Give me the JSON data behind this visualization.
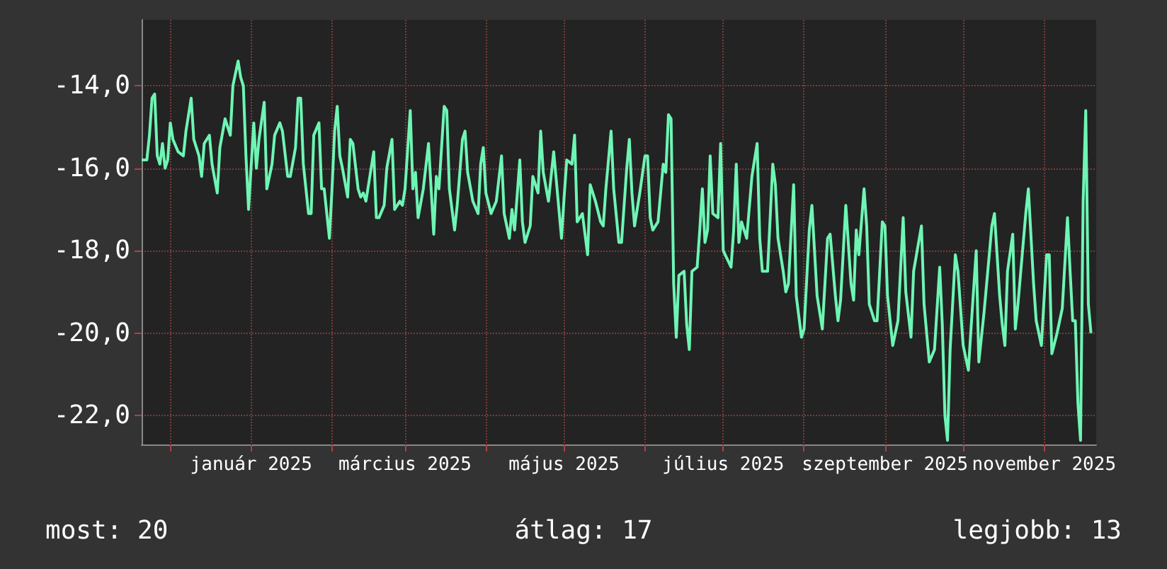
{
  "chart_data": {
    "type": "line",
    "x": [
      "2024-11-20",
      "2024-11-22",
      "2024-11-23",
      "2024-11-24",
      "2024-11-25",
      "2024-11-26",
      "2024-11-27",
      "2024-11-28",
      "2024-11-29",
      "2024-11-30",
      "2024-12-01",
      "2024-12-02",
      "2024-12-04",
      "2024-12-06",
      "2024-12-07",
      "2024-12-09",
      "2024-12-10",
      "2024-12-12",
      "2024-12-13",
      "2024-12-14",
      "2024-12-16",
      "2024-12-17",
      "2024-12-19",
      "2024-12-20",
      "2024-12-22",
      "2024-12-24",
      "2024-12-25",
      "2024-12-27",
      "2024-12-28",
      "2024-12-29",
      "2024-12-30",
      "2024-12-31",
      "2025-01-02",
      "2025-01-03",
      "2025-01-04",
      "2025-01-06",
      "2025-01-07",
      "2025-01-09",
      "2025-01-10",
      "2025-01-12",
      "2025-01-13",
      "2025-01-15",
      "2025-01-16",
      "2025-01-18",
      "2025-01-19",
      "2025-01-20",
      "2025-01-21",
      "2025-01-23",
      "2025-01-24",
      "2025-01-25",
      "2025-01-27",
      "2025-01-28",
      "2025-01-29",
      "2025-01-31",
      "2025-02-01",
      "2025-02-02",
      "2025-02-03",
      "2025-02-04",
      "2025-02-05",
      "2025-02-07",
      "2025-02-08",
      "2025-02-09",
      "2025-02-11",
      "2025-02-12",
      "2025-02-13",
      "2025-02-14",
      "2025-02-16",
      "2025-02-17",
      "2025-02-18",
      "2025-02-19",
      "2025-02-21",
      "2025-02-22",
      "2025-02-24",
      "2025-02-25",
      "2025-02-27",
      "2025-02-28",
      "2025-03-01",
      "2025-03-03",
      "2025-03-04",
      "2025-03-05",
      "2025-03-06",
      "2025-03-08",
      "2025-03-10",
      "2025-03-12",
      "2025-03-13",
      "2025-03-14",
      "2025-03-16",
      "2025-03-17",
      "2025-03-18",
      "2025-03-20",
      "2025-03-21",
      "2025-03-23",
      "2025-03-24",
      "2025-03-25",
      "2025-03-27",
      "2025-03-29",
      "2025-03-30",
      "2025-03-31",
      "2025-04-01",
      "2025-04-03",
      "2025-04-05",
      "2025-04-07",
      "2025-04-08",
      "2025-04-10",
      "2025-04-11",
      "2025-04-12",
      "2025-04-14",
      "2025-04-15",
      "2025-04-16",
      "2025-04-18",
      "2025-04-19",
      "2025-04-21",
      "2025-04-22",
      "2025-04-23",
      "2025-04-25",
      "2025-04-27",
      "2025-04-28",
      "2025-04-30",
      "2025-05-01",
      "2025-05-02",
      "2025-05-04",
      "2025-05-05",
      "2025-05-06",
      "2025-05-08",
      "2025-05-10",
      "2025-05-11",
      "2025-05-13",
      "2025-05-15",
      "2025-05-16",
      "2025-05-17",
      "2025-05-19",
      "2025-05-20",
      "2025-05-22",
      "2025-05-23",
      "2025-05-25",
      "2025-05-26",
      "2025-05-27",
      "2025-05-28",
      "2025-05-30",
      "2025-06-01",
      "2025-06-02",
      "2025-06-03",
      "2025-06-04",
      "2025-06-06",
      "2025-06-08",
      "2025-06-09",
      "2025-06-10",
      "2025-06-11",
      "2025-06-12",
      "2025-06-13",
      "2025-06-14",
      "2025-06-16",
      "2025-06-17",
      "2025-06-18",
      "2025-06-19",
      "2025-06-21",
      "2025-06-22",
      "2025-06-23",
      "2025-06-24",
      "2025-06-25",
      "2025-06-26",
      "2025-06-27",
      "2025-06-29",
      "2025-06-30",
      "2025-07-01",
      "2025-07-04",
      "2025-07-05",
      "2025-07-06",
      "2025-07-07",
      "2025-07-08",
      "2025-07-10",
      "2025-07-12",
      "2025-07-14",
      "2025-07-15",
      "2025-07-16",
      "2025-07-18",
      "2025-07-20",
      "2025-07-21",
      "2025-07-22",
      "2025-07-24",
      "2025-07-25",
      "2025-07-26",
      "2025-07-28",
      "2025-07-29",
      "2025-07-31",
      "2025-08-01",
      "2025-08-03",
      "2025-08-04",
      "2025-08-06",
      "2025-08-08",
      "2025-08-10",
      "2025-08-11",
      "2025-08-13",
      "2025-08-14",
      "2025-08-15",
      "2025-08-17",
      "2025-08-19",
      "2025-08-20",
      "2025-08-21",
      "2025-08-22",
      "2025-08-24",
      "2025-08-25",
      "2025-08-26",
      "2025-08-28",
      "2025-08-29",
      "2025-08-31",
      "2025-09-01",
      "2025-09-02",
      "2025-09-04",
      "2025-09-06",
      "2025-09-08",
      "2025-09-09",
      "2025-09-11",
      "2025-09-12",
      "2025-09-15",
      "2025-09-16",
      "2025-09-18",
      "2025-09-20",
      "2025-09-22",
      "2025-09-23",
      "2025-09-24",
      "2025-09-25",
      "2025-09-26",
      "2025-09-28",
      "2025-09-29",
      "2025-10-01",
      "2025-10-03",
      "2025-10-04",
      "2025-10-06",
      "2025-10-07",
      "2025-10-09",
      "2025-10-10",
      "2025-10-12",
      "2025-10-13",
      "2025-10-15",
      "2025-10-16",
      "2025-10-17",
      "2025-10-18",
      "2025-10-20",
      "2025-10-21",
      "2025-10-22",
      "2025-10-25",
      "2025-10-26",
      "2025-10-28",
      "2025-10-29",
      "2025-10-31",
      "2025-11-02",
      "2025-11-03",
      "2025-11-04",
      "2025-11-06",
      "2025-11-08",
      "2025-11-10",
      "2025-11-11",
      "2025-11-12",
      "2025-11-13",
      "2025-11-14",
      "2025-11-15",
      "2025-11-16",
      "2025-11-17",
      "2025-11-18",
      "2025-11-19"
    ],
    "series": [
      {
        "color": "#6ef5b4",
        "values": [
          -15.8,
          -15.8,
          -15.2,
          -14.3,
          -14.2,
          -15.7,
          -15.9,
          -15.4,
          -16.0,
          -15.8,
          -14.9,
          -15.3,
          -15.6,
          -15.7,
          -15.1,
          -14.3,
          -15.3,
          -15.7,
          -16.2,
          -15.4,
          -15.2,
          -15.9,
          -16.6,
          -15.5,
          -14.8,
          -15.2,
          -14.0,
          -13.4,
          -13.8,
          -14.0,
          -15.7,
          -17.0,
          -14.9,
          -16.0,
          -15.3,
          -14.4,
          -16.5,
          -15.9,
          -15.2,
          -14.9,
          -15.1,
          -16.2,
          -16.2,
          -15.5,
          -14.3,
          -14.3,
          -15.9,
          -17.1,
          -17.1,
          -15.2,
          -14.9,
          -16.5,
          -16.5,
          -17.7,
          -16.5,
          -15.1,
          -14.5,
          -15.7,
          -16.0,
          -16.7,
          -15.3,
          -15.4,
          -16.5,
          -16.7,
          -16.6,
          -16.8,
          -16.0,
          -15.6,
          -17.2,
          -17.2,
          -16.9,
          -16.0,
          -15.3,
          -17.0,
          -16.8,
          -16.9,
          -16.5,
          -14.6,
          -16.5,
          -16.1,
          -17.2,
          -16.5,
          -15.4,
          -17.6,
          -16.2,
          -16.5,
          -14.5,
          -14.6,
          -16.5,
          -17.5,
          -16.9,
          -15.3,
          -15.1,
          -16.1,
          -16.8,
          -17.1,
          -15.9,
          -15.5,
          -16.6,
          -17.1,
          -16.8,
          -15.7,
          -17.1,
          -17.7,
          -17.0,
          -17.5,
          -15.8,
          -17.3,
          -17.8,
          -17.4,
          -16.2,
          -16.6,
          -15.1,
          -16.1,
          -16.8,
          -15.6,
          -16.3,
          -17.7,
          -16.7,
          -15.8,
          -15.9,
          -15.2,
          -17.3,
          -17.1,
          -18.1,
          -16.4,
          -16.8,
          -17.3,
          -17.4,
          -16.5,
          -15.1,
          -16.5,
          -17.8,
          -17.8,
          -16.0,
          -15.3,
          -16.6,
          -17.4,
          -16.6,
          -15.7,
          -15.7,
          -17.2,
          -17.5,
          -17.3,
          -15.9,
          -16.1,
          -14.7,
          -14.8,
          -18.8,
          -20.1,
          -18.6,
          -18.5,
          -19.8,
          -20.4,
          -18.5,
          -18.4,
          -17.5,
          -16.5,
          -17.8,
          -17.5,
          -15.7,
          -17.1,
          -17.2,
          -15.4,
          -18.0,
          -18.4,
          -17.5,
          -15.9,
          -17.8,
          -17.3,
          -17.7,
          -16.2,
          -15.4,
          -17.7,
          -18.5,
          -18.5,
          -15.9,
          -16.4,
          -17.7,
          -18.5,
          -19.0,
          -18.8,
          -16.4,
          -19.1,
          -20.1,
          -19.9,
          -17.5,
          -16.9,
          -19.1,
          -19.9,
          -17.7,
          -17.6,
          -19.1,
          -19.7,
          -19.2,
          -16.9,
          -18.8,
          -19.2,
          -17.5,
          -18.1,
          -16.5,
          -17.4,
          -19.3,
          -19.7,
          -19.7,
          -17.3,
          -17.4,
          -19.1,
          -20.3,
          -19.7,
          -17.2,
          -19.0,
          -20.1,
          -18.5,
          -17.4,
          -19.3,
          -20.7,
          -20.4,
          -18.4,
          -19.8,
          -22.0,
          -22.6,
          -20.4,
          -18.1,
          -18.5,
          -20.3,
          -20.9,
          -19.9,
          -18.0,
          -20.7,
          -19.5,
          -18.8,
          -17.4,
          -17.1,
          -19.1,
          -19.8,
          -20.3,
          -18.5,
          -17.6,
          -19.9,
          -19.3,
          -17.1,
          -16.5,
          -18.8,
          -19.7,
          -20.3,
          -18.1,
          -18.1,
          -20.5,
          -20.0,
          -19.4,
          -17.2,
          -18.5,
          -19.7,
          -19.7,
          -21.7,
          -22.6,
          -16.8,
          -14.6,
          -19.3,
          -20.0
        ]
      }
    ],
    "xlim": [
      "2024-11-20",
      "2025-11-21"
    ],
    "xticks": [
      {
        "value": "2024-12-01",
        "label": null
      },
      {
        "value": "2025-01-01",
        "label": "január 2025"
      },
      {
        "value": "2025-02-01",
        "label": null
      },
      {
        "value": "2025-03-01",
        "label": "március 2025"
      },
      {
        "value": "2025-04-01",
        "label": null
      },
      {
        "value": "2025-05-01",
        "label": "május 2025"
      },
      {
        "value": "2025-06-01",
        "label": null
      },
      {
        "value": "2025-07-01",
        "label": "július 2025"
      },
      {
        "value": "2025-08-01",
        "label": null
      },
      {
        "value": "2025-09-01",
        "label": "szeptember 2025"
      },
      {
        "value": "2025-10-01",
        "label": null
      },
      {
        "value": "2025-11-01",
        "label": "november 2025"
      }
    ],
    "ylim": [
      -22.7,
      -12.4
    ],
    "yticks": [
      {
        "value": -22,
        "label": "-22,0"
      },
      {
        "value": -20,
        "label": "-20,0"
      },
      {
        "value": -18,
        "label": "-18,0"
      },
      {
        "value": -16,
        "label": "-16,0"
      },
      {
        "value": -14,
        "label": "-14,0"
      }
    ],
    "grid": true,
    "annotations": [
      "most: 20",
      "átlag: 17",
      "legjobb: 13"
    ]
  }
}
